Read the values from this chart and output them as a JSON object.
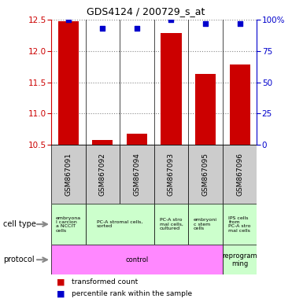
{
  "title": "GDS4124 / 200729_s_at",
  "samples": [
    "GSM867091",
    "GSM867092",
    "GSM867094",
    "GSM867093",
    "GSM867095",
    "GSM867096"
  ],
  "transformed_counts": [
    12.48,
    10.58,
    10.68,
    12.28,
    11.63,
    11.78
  ],
  "percentile_ranks": [
    100,
    93,
    93,
    100,
    97,
    97
  ],
  "ylim": [
    10.5,
    12.5
  ],
  "ylim_right": [
    0,
    100
  ],
  "yticks_left": [
    10.5,
    11.0,
    11.5,
    12.0,
    12.5
  ],
  "yticks_right": [
    0,
    25,
    50,
    75,
    100
  ],
  "cell_types": [
    {
      "label": "embryona\nl carcion\na NCCIT\ncells",
      "color": "#ccffcc",
      "span": [
        0,
        1
      ]
    },
    {
      "label": "PC-A stromal cells,\nsorted",
      "color": "#ccffcc",
      "span": [
        1,
        3
      ]
    },
    {
      "label": "PC-A stro\nmal cells,\ncultured",
      "color": "#ccffcc",
      "span": [
        3,
        4
      ]
    },
    {
      "label": "embryoni\nc stem\ncells",
      "color": "#ccffcc",
      "span": [
        4,
        5
      ]
    },
    {
      "label": "IPS cells\nfrom\nPC-A stro\nmal cells",
      "color": "#ccffcc",
      "span": [
        5,
        6
      ]
    }
  ],
  "protocols": [
    {
      "label": "control",
      "color": "#ff88ff",
      "span": [
        0,
        5
      ]
    },
    {
      "label": "reprogram\nming",
      "color": "#ccffcc",
      "span": [
        5,
        6
      ]
    }
  ],
  "bar_color": "#cc0000",
  "dot_color": "#0000cc",
  "grid_color": "#888888",
  "left_axis_color": "#cc0000",
  "right_axis_color": "#0000cc",
  "bg_color": "#ffffff",
  "sample_bg_color": "#cccccc"
}
